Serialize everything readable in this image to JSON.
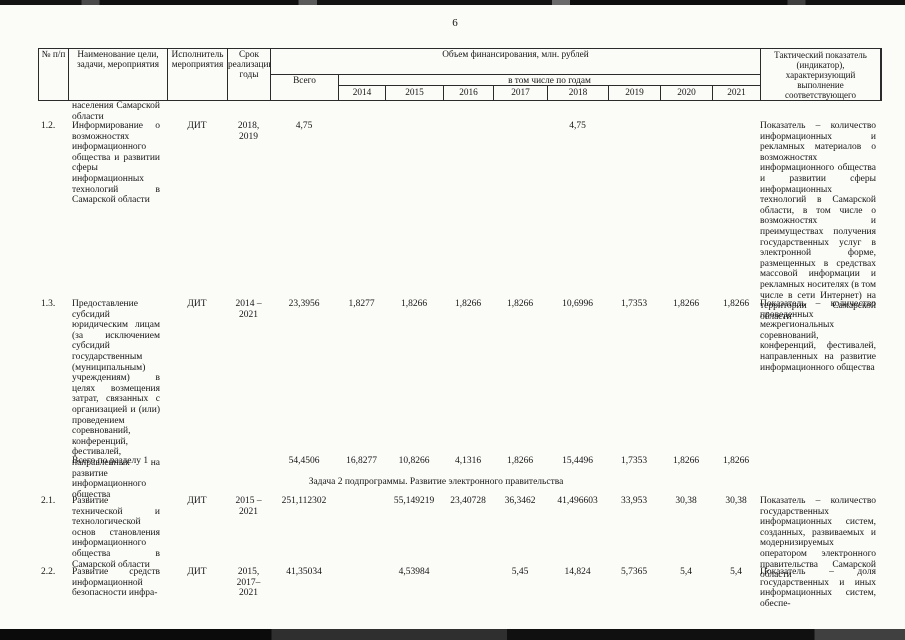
{
  "page": {
    "number": "6"
  },
  "table": {
    "header": {
      "col_num": "№ п/п",
      "col_name": "Наименование цели, задачи, мероприятия",
      "col_executor": "Исполнитель мероприятия",
      "col_term": "Срок реализации, годы",
      "col_financing": "Объем финансирования, млн. рублей",
      "col_total": "Всего",
      "col_by_years": "в том числе по годам",
      "years": [
        "2014",
        "2015",
        "2016",
        "2017",
        "2018",
        "2019",
        "2020",
        "2021"
      ],
      "col_indicator": "Тактический показатель (индикатор), характеризующий выполнение соответствующего мероприятия (мероприятий)"
    },
    "rows": [
      {
        "id": "carry",
        "type": "continuation",
        "name": "населения Самарской области"
      },
      {
        "id": "r12",
        "type": "item",
        "num": "1.2.",
        "name": "Информирование о возможностях информационного общества и развитии сферы информационных технологий в Самарской области",
        "executor": "ДИТ",
        "term": "2018, 2019",
        "total": "4,75",
        "years": [
          "",
          "",
          "",
          "",
          "4,75",
          "",
          "",
          ""
        ],
        "indicator": "Показатель – количество информационных и рекламных материалов о возможностях информационного общества и развитии сферы информационных технологий в Самарской области, в том числе о возможностях и преимуществах получения государственных услуг в электронной форме, размещенных в средствах массовой информации и рекламных носителях (в том числе в сети Интернет) на территории Самарской области"
      },
      {
        "id": "r13",
        "type": "item",
        "num": "1.3.",
        "name": "Предоставление субсидий юридическим лицам (за исключением субсидий государственным (муниципальным) учреждениям) в целях возмещения затрат, связанных с организацией и (или) проведением соревнований, конференций, фестивалей, направленных на развитие информационного общества",
        "executor": "ДИТ",
        "term": "2014 – 2021",
        "total": "23,3956",
        "years": [
          "1,8277",
          "1,8266",
          "1,8266",
          "1,8266",
          "10,6996",
          "1,7353",
          "1,8266",
          "1,8266"
        ],
        "indicator": "Показатель – количество проведенных межрегиональных соревнований, конференций, фестивалей, направленных на развитие информационного общества"
      },
      {
        "id": "total1",
        "type": "subtotal",
        "name": "Всего по разделу 1",
        "total": "54,4506",
        "years": [
          "16,8277",
          "10,8266",
          "4,1316",
          "1,8266",
          "15,4496",
          "1,7353",
          "1,8266",
          "1,8266"
        ]
      },
      {
        "id": "task2",
        "type": "section",
        "name": "Задача 2 подпрограммы. Развитие электронного правительства"
      },
      {
        "id": "r21",
        "type": "item",
        "num": "2.1.",
        "name": "Развитие технической и технологической основ становления информационного общества в Самарской области",
        "executor": "ДИТ",
        "term": "2015 – 2021",
        "total": "251,112302",
        "years": [
          "",
          "55,149219",
          "23,40728",
          "36,3462",
          "41,496603",
          "33,953",
          "30,38",
          "30,38"
        ],
        "indicator": "Показатель – количество государственных информационных систем, созданных, развиваемых и модернизируемых оператором электронного правительства Самарской области"
      },
      {
        "id": "r22",
        "type": "item",
        "num": "2.2.",
        "name": "Развитие средств информационной безопасности инфра-",
        "executor": "ДИТ",
        "term": "2015, 2017–2021",
        "total": "41,35034",
        "years": [
          "",
          "4,53984",
          "",
          "5,45",
          "14,824",
          "5,7365",
          "5,4",
          "5,4"
        ],
        "indicator": "Показатель – доля государственных и иных информационных систем, обеспе-"
      }
    ]
  }
}
